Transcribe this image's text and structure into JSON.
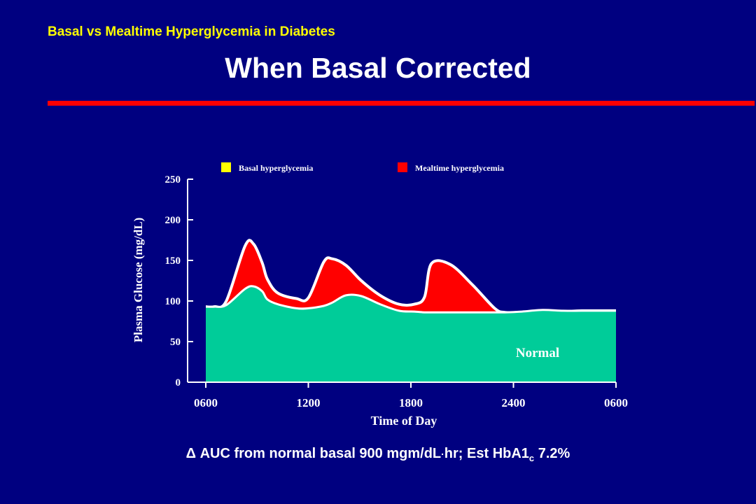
{
  "slide": {
    "subtitle": "Basal vs Mealtime Hyperglycemia in Diabetes",
    "title": "When Basal Corrected"
  },
  "colors": {
    "background": "#000080",
    "basal": "#FFFF00",
    "mealtime": "#FF0000",
    "normal": "#00CC99",
    "outline": "#FFFFFF",
    "title_rule": "#FF0000"
  },
  "chart_data": {
    "type": "area",
    "title": "",
    "xlabel": "Time of Day",
    "ylabel": "Plasma Glucose (mg/dL)",
    "ylim": [
      0,
      250
    ],
    "y_ticks": [
      0,
      50,
      100,
      150,
      200,
      250
    ],
    "y_tick_labels": [
      "0",
      "50",
      "100",
      "150",
      "200",
      "250"
    ],
    "x_hours_range": [
      0,
      24
    ],
    "x_ticks_hours": [
      0,
      6,
      12,
      18,
      24
    ],
    "x_tick_labels": [
      "0600",
      "1200",
      "1800",
      "2400",
      "0600"
    ],
    "legend": {
      "placement": "top",
      "items": [
        {
          "label": "Basal hyperglycemia",
          "color_key": "basal"
        },
        {
          "label": "Mealtime hyperglycemia",
          "color_key": "mealtime"
        }
      ]
    },
    "region_label": "Normal",
    "x_hours": [
      0,
      0.5,
      1.2,
      2.3,
      2.8,
      3.3,
      3.6,
      4.2,
      5.3,
      6.0,
      6.9,
      7.4,
      8.2,
      9.1,
      10.2,
      11.3,
      12.2,
      12.8,
      13.2,
      14.3,
      15.6,
      16.9,
      17.5,
      18.5,
      19.7,
      20.9,
      22.0,
      23.2,
      24.0
    ],
    "series": [
      {
        "name": "Basal hyperglycemia",
        "values": [
          93,
          93,
          95,
          115,
          118,
          112,
          102,
          96,
          91,
          91,
          94,
          98,
          107,
          106,
          96,
          88,
          87,
          86,
          86,
          86,
          86,
          86,
          86,
          87,
          89,
          88,
          88,
          88,
          88
        ]
      },
      {
        "name": "Mealtime hyperglycemia",
        "values": [
          93,
          93,
          100,
          168,
          170,
          147,
          127,
          110,
          103,
          104,
          148,
          152,
          144,
          125,
          107,
          96,
          96,
          105,
          146,
          145,
          120,
          91,
          86,
          86,
          86,
          87,
          88,
          88,
          88
        ]
      }
    ],
    "grid": false,
    "annotation": "Δ AUC from normal basal 900 mgm/dL·hr; Est HbA1c 7.2%"
  },
  "footnote": {
    "delta": "Δ",
    "part1": " AUC from normal basal 900 mgm/dL",
    "dot": "·",
    "part2": "hr; Est HbA1",
    "sub": "c",
    "part3": " 7.2%"
  }
}
